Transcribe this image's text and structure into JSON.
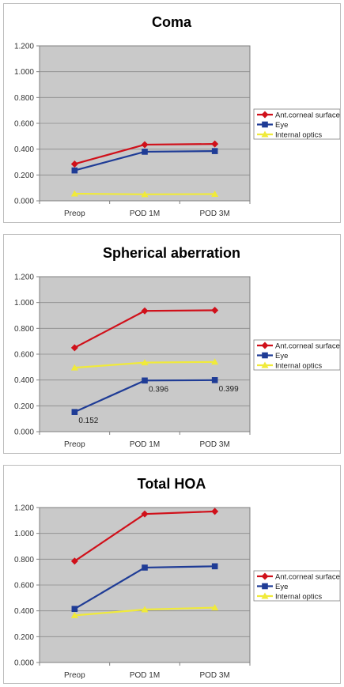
{
  "chart_data": [
    {
      "type": "line",
      "title": "Coma",
      "categories": [
        "Preop",
        "POD 1M",
        "POD 3M"
      ],
      "ylim": [
        0,
        1.2
      ],
      "yticks": [
        "0.000",
        "0.200",
        "0.400",
        "0.600",
        "0.800",
        "1.000",
        "1.200"
      ],
      "legend_position": "right",
      "series": [
        {
          "name": "Ant.corneal surface",
          "color": "#d0101a",
          "marker": "diamond",
          "values": [
            0.285,
            0.435,
            0.44
          ]
        },
        {
          "name": "Eye",
          "color": "#1f3c96",
          "marker": "square",
          "values": [
            0.235,
            0.38,
            0.385
          ]
        },
        {
          "name": "Internal optics",
          "color": "#f0ea3a",
          "marker": "triangle",
          "values": [
            0.055,
            0.05,
            0.052
          ]
        }
      ],
      "data_labels": []
    },
    {
      "type": "line",
      "title": "Spherical aberration",
      "categories": [
        "Preop",
        "POD 1M",
        "POD 3M"
      ],
      "ylim": [
        0,
        1.2
      ],
      "yticks": [
        "0.000",
        "0.200",
        "0.400",
        "0.600",
        "0.800",
        "1.000",
        "1.200"
      ],
      "legend_position": "right",
      "series": [
        {
          "name": "Ant.corneal surface",
          "color": "#d0101a",
          "marker": "diamond",
          "values": [
            0.65,
            0.935,
            0.94
          ]
        },
        {
          "name": "Eye",
          "color": "#1f3c96",
          "marker": "square",
          "values": [
            0.152,
            0.396,
            0.399
          ]
        },
        {
          "name": "Internal optics",
          "color": "#f0ea3a",
          "marker": "triangle",
          "values": [
            0.495,
            0.535,
            0.54
          ]
        }
      ],
      "data_labels": [
        {
          "series": 1,
          "index": 0,
          "text": "0.152"
        },
        {
          "series": 1,
          "index": 1,
          "text": "0.396"
        },
        {
          "series": 1,
          "index": 2,
          "text": "0.399"
        }
      ]
    },
    {
      "type": "line",
      "title": "Total HOA",
      "categories": [
        "Preop",
        "POD 1M",
        "POD 3M"
      ],
      "ylim": [
        0,
        1.2
      ],
      "yticks": [
        "0.000",
        "0.200",
        "0.400",
        "0.600",
        "0.800",
        "1.000",
        "1.200"
      ],
      "legend_position": "right",
      "series": [
        {
          "name": "Ant.corneal surface",
          "color": "#d0101a",
          "marker": "diamond",
          "values": [
            0.785,
            1.15,
            1.17
          ]
        },
        {
          "name": "Eye",
          "color": "#1f3c96",
          "marker": "square",
          "values": [
            0.415,
            0.735,
            0.745
          ]
        },
        {
          "name": "Internal optics",
          "color": "#f0ea3a",
          "marker": "triangle",
          "values": [
            0.365,
            0.41,
            0.425
          ]
        }
      ],
      "data_labels": []
    }
  ]
}
